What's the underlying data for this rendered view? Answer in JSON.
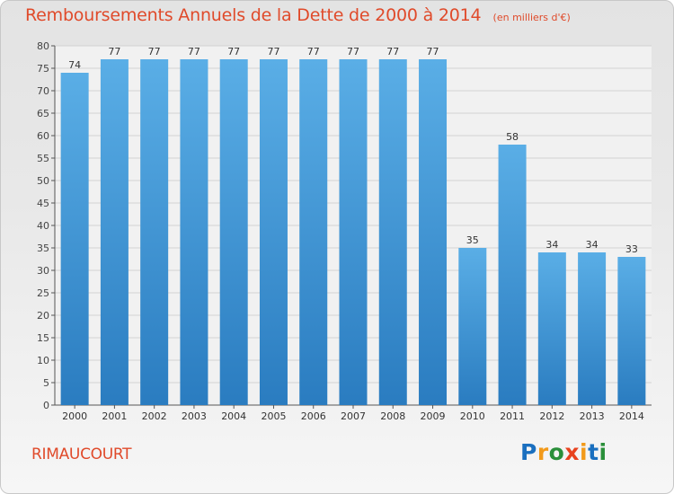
{
  "header": {
    "title": "Remboursements Annuels de la Dette de 2000 à 2014",
    "subtitle": "(en milliers d'€)"
  },
  "footer": {
    "place": "RIMAUCOURT",
    "brand": "Proxiti"
  },
  "colors": {
    "title": "#e04a2a",
    "bar_light": "#5aaee6",
    "bar_dark": "#2a7cc0",
    "brand_p": "#1a6fbf",
    "brand_r": "#f29a1a",
    "brand_o": "#2a8f3a",
    "brand_x": "#e8431f",
    "brand_i": "#f29a1a",
    "brand_t": "#1a6fbf",
    "brand_i2": "#2a8f3a"
  },
  "chart_data": {
    "type": "bar",
    "categories": [
      "2000",
      "2001",
      "2002",
      "2003",
      "2004",
      "2005",
      "2006",
      "2007",
      "2008",
      "2009",
      "2010",
      "2011",
      "2012",
      "2013",
      "2014"
    ],
    "values": [
      74,
      77,
      77,
      77,
      77,
      77,
      77,
      77,
      77,
      77,
      35,
      58,
      34,
      34,
      33
    ],
    "ylim": [
      0,
      80
    ],
    "yticks": [
      0,
      5,
      10,
      15,
      20,
      25,
      30,
      35,
      40,
      45,
      50,
      55,
      60,
      65,
      70,
      75,
      80
    ],
    "grid": true,
    "data_labels": true
  }
}
